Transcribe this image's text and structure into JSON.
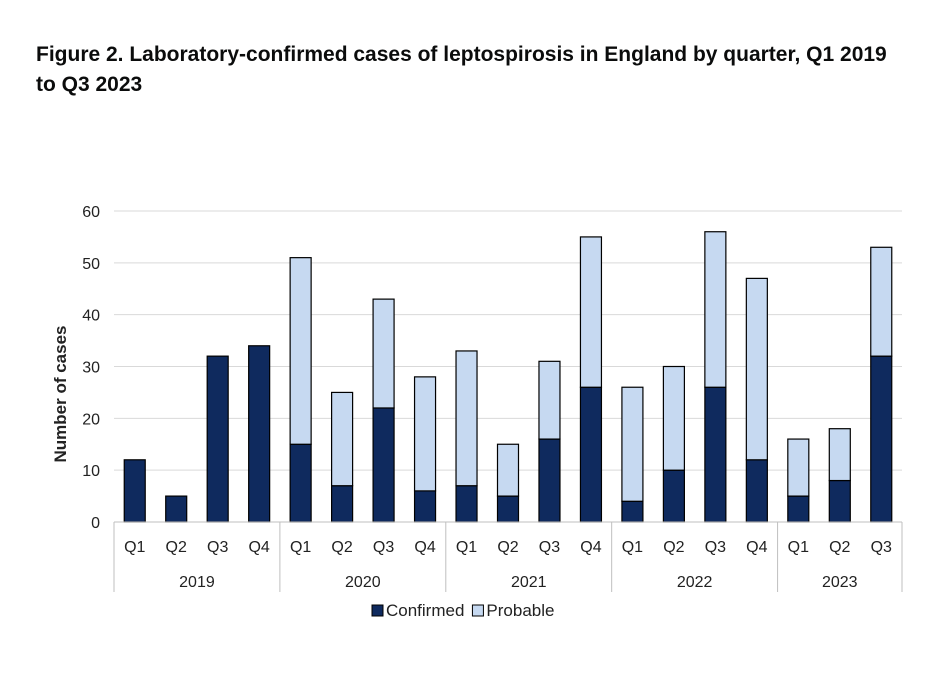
{
  "chart_data": {
    "type": "bar",
    "stacked": true,
    "title": "Figure 2. Laboratory-confirmed cases of leptospirosis in England by quarter, Q1 2019 to Q3 2023",
    "xlabel": "",
    "ylabel": "Number of cases",
    "ylim": [
      0,
      60
    ],
    "yticks": [
      0,
      10,
      20,
      30,
      40,
      50,
      60
    ],
    "grid": true,
    "legend_position": "bottom",
    "groups": [
      {
        "label": "2019",
        "count": 4
      },
      {
        "label": "2020",
        "count": 4
      },
      {
        "label": "2021",
        "count": 4
      },
      {
        "label": "2022",
        "count": 4
      },
      {
        "label": "2023",
        "count": 3
      }
    ],
    "categories": [
      "Q1",
      "Q2",
      "Q3",
      "Q4",
      "Q1",
      "Q2",
      "Q3",
      "Q4",
      "Q1",
      "Q2",
      "Q3",
      "Q4",
      "Q1",
      "Q2",
      "Q3",
      "Q4",
      "Q1",
      "Q2",
      "Q3"
    ],
    "series": [
      {
        "name": "Confirmed",
        "color": "#0f2a5e",
        "values": [
          12,
          5,
          32,
          34,
          15,
          7,
          22,
          6,
          7,
          5,
          16,
          26,
          4,
          10,
          26,
          12,
          5,
          8,
          32
        ]
      },
      {
        "name": "Probable",
        "color": "#c6d9f1",
        "values": [
          0,
          0,
          0,
          0,
          36,
          18,
          21,
          22,
          26,
          10,
          15,
          29,
          22,
          20,
          30,
          35,
          11,
          10,
          21
        ]
      }
    ]
  }
}
